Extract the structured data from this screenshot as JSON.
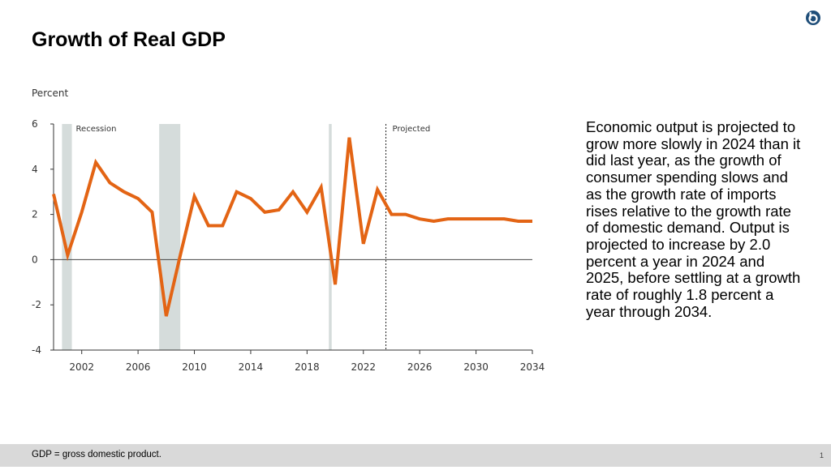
{
  "slide": {
    "title": "Growth of Real GDP",
    "body_text": "Economic output is projected to grow more slowly in 2024 than it did last year, as the growth of consumer spending slows and as the growth rate of imports rises relative to the growth rate of domestic demand. Output is projected to increase by 2.0 percent a year in 2024 and 2025, before settling at a growth rate of roughly 1.8 percent a year through 2034.",
    "footnote": "GDP = gross domestic product.",
    "page_number": "1",
    "logo_icon": "cbo-logo-icon"
  },
  "chart_data": {
    "type": "line",
    "title": "",
    "ylabel": "Percent",
    "xlabel": "",
    "xlim": [
      2000,
      2034
    ],
    "ylim": [
      -4,
      6
    ],
    "yticks": [
      "6",
      "4",
      "2",
      "0",
      "-2",
      "-4"
    ],
    "ytick_values": [
      6,
      4,
      2,
      0,
      -2,
      -4
    ],
    "xticks": [
      "2002",
      "2006",
      "2010",
      "2014",
      "2018",
      "2022",
      "2026",
      "2030",
      "2034"
    ],
    "xtick_values": [
      2002,
      2006,
      2010,
      2014,
      2018,
      2022,
      2026,
      2030,
      2034
    ],
    "series": [
      {
        "name": "Real GDP growth",
        "color": "#e36414",
        "x": [
          2000,
          2001,
          2002,
          2003,
          2004,
          2005,
          2006,
          2007,
          2008,
          2009,
          2010,
          2011,
          2012,
          2013,
          2014,
          2015,
          2016,
          2017,
          2018,
          2019,
          2020,
          2021,
          2022,
          2023,
          2024,
          2025,
          2026,
          2027,
          2028,
          2029,
          2030,
          2031,
          2032,
          2033,
          2034
        ],
        "values": [
          2.9,
          0.2,
          2.1,
          4.3,
          3.4,
          3.0,
          2.7,
          2.1,
          -2.5,
          0.2,
          2.8,
          1.5,
          1.5,
          3.0,
          2.7,
          2.1,
          2.2,
          3.0,
          2.1,
          3.2,
          -1.1,
          5.4,
          0.7,
          3.1,
          2.0,
          2.0,
          1.8,
          1.7,
          1.8,
          1.8,
          1.8,
          1.8,
          1.8,
          1.7,
          1.7
        ]
      }
    ],
    "recessions": [
      [
        2000.6,
        2001.3
      ],
      [
        2007.5,
        2009.0
      ],
      [
        2019.55,
        2019.75
      ]
    ],
    "recession_label": "Recession",
    "recession_color": "#d5dcdb",
    "projected_start": 2023.6,
    "projected_label": "Projected",
    "grid": false
  }
}
